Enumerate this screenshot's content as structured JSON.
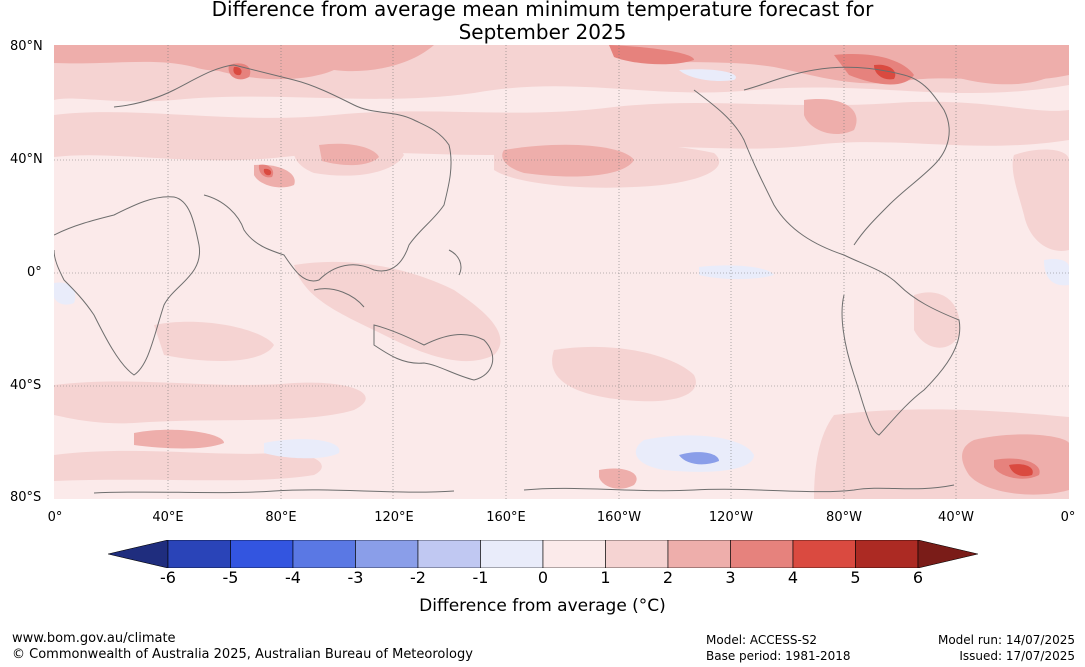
{
  "title_line1": "Difference from average mean minimum temperature forecast for",
  "title_line2": "September 2025",
  "lat_labels": [
    "80°N",
    "40°N",
    "0°",
    "40°S",
    "80°S"
  ],
  "lon_labels": [
    "0°",
    "40°E",
    "80°E",
    "120°E",
    "160°E",
    "160°W",
    "120°W",
    "80°W",
    "40°W",
    "0°"
  ],
  "colorbar": {
    "ticks": [
      "-6",
      "-5",
      "-4",
      "-3",
      "-2",
      "-1",
      "0",
      "1",
      "2",
      "3",
      "4",
      "5",
      "6"
    ],
    "colors": [
      "#1f2d7e",
      "#2a44b8",
      "#3355e0",
      "#5a78e4",
      "#8a9ee9",
      "#c0c8f2",
      "#e9ecfa",
      "#fbeaea",
      "#f5d3d2",
      "#eeaeab",
      "#e6827d",
      "#da4a40",
      "#ac2a23",
      "#7a1c18"
    ],
    "label": "Difference from average (°C)"
  },
  "footer": {
    "url": "www.bom.gov.au/climate",
    "copyright": "© Commonwealth of Australia 2025, Australian Bureau of Meteorology",
    "model": "Model: ACCESS-S2",
    "base_period": "Base period: 1981-2018",
    "model_run": "Model run: 14/07/2025",
    "issued": "Issued: 17/07/2025"
  }
}
